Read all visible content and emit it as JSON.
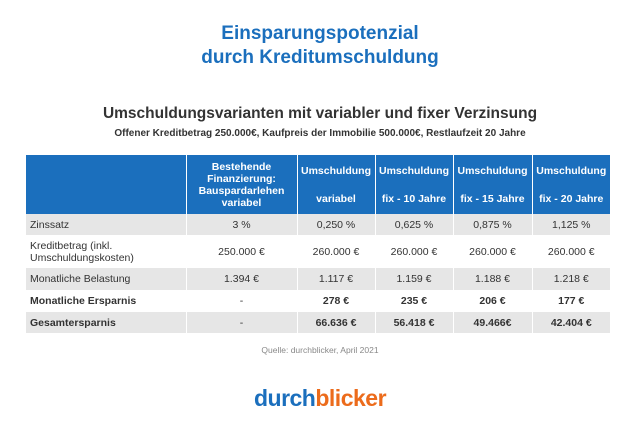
{
  "title_line1": "Einsparungspotenzial",
  "title_line2": "durch Kreditumschuldung",
  "subtitle": "Umschuldungsvarianten mit variabler und fixer Verzinsung",
  "description": "Offener Kreditbetrag 250.000€, Kaufpreis der Immobilie 500.000€, Restlaufzeit 20 Jahre",
  "table": {
    "headers": [
      {
        "top": "",
        "bottom": ""
      },
      {
        "top": "Bestehende Finanzierung: Bauspardarlehen variabel",
        "bottom": ""
      },
      {
        "top": "Umschuldung",
        "bottom": "variabel"
      },
      {
        "top": "Umschuldung",
        "bottom": "fix - 10 Jahre"
      },
      {
        "top": "Umschuldung",
        "bottom": "fix - 15 Jahre"
      },
      {
        "top": "Umschuldung",
        "bottom": "fix - 20 Jahre"
      }
    ],
    "rows": [
      [
        "Zinssatz",
        "3 %",
        "0,250 %",
        "0,625 %",
        "0,875 %",
        "1,125 %"
      ],
      [
        "Kreditbetrag (inkl. Umschuldungskosten)",
        "250.000 €",
        "260.000 €",
        "260.000 €",
        "260.000 €",
        "260.000 €"
      ],
      [
        "Monatliche Belastung",
        "1.394 €",
        "1.117 €",
        "1.159 €",
        "1.188 €",
        "1.218 €"
      ],
      [
        "Monatliche Ersparnis",
        "-",
        "278 €",
        "235 €",
        "206 €",
        "177 €"
      ],
      [
        "Gesamtersparnis",
        "-",
        "66.636 €",
        "56.418 €",
        "49.466€",
        "42.404 €"
      ]
    ]
  },
  "source": "Quelle: durchblicker, April 2021",
  "logo": {
    "part1": "durch",
    "part2": "blicker"
  },
  "colors": {
    "brand_blue": "#1b6fbd",
    "brand_orange": "#ec6b1b",
    "row_gray": "#e6e6e6"
  }
}
